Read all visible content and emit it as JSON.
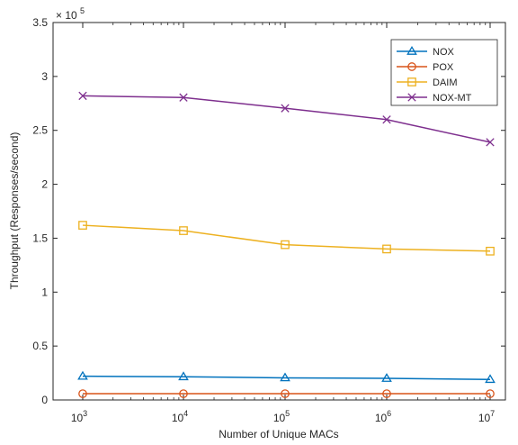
{
  "chart_data": {
    "type": "line",
    "title": "",
    "xlabel": "Number of Unique MACs",
    "ylabel": "Throughput (Responses/second)",
    "x_scale": "log",
    "x": [
      1000,
      10000,
      100000,
      1000000,
      10000000
    ],
    "x_tick_labels": [
      {
        "base": "10",
        "exp": "3"
      },
      {
        "base": "10",
        "exp": "4"
      },
      {
        "base": "10",
        "exp": "5"
      },
      {
        "base": "10",
        "exp": "6"
      },
      {
        "base": "10",
        "exp": "7"
      }
    ],
    "ylim": [
      0,
      350000
    ],
    "y_ticks": [
      0,
      50000,
      100000,
      150000,
      200000,
      250000,
      300000,
      350000
    ],
    "y_tick_labels": [
      "0",
      "0.5",
      "1",
      "1.5",
      "2",
      "2.5",
      "3",
      "3.5"
    ],
    "y_multiplier": {
      "base": "× 10",
      "exp": "5"
    },
    "grid": false,
    "legend_position": "top-right",
    "series": [
      {
        "name": "NOX",
        "color": "#0072BD",
        "marker": "triangle",
        "values": [
          22000,
          21500,
          20500,
          20000,
          19000
        ]
      },
      {
        "name": "POX",
        "color": "#D95319",
        "marker": "circle",
        "values": [
          5800,
          5800,
          5800,
          5800,
          5800
        ]
      },
      {
        "name": "DAIM",
        "color": "#EDB120",
        "marker": "square",
        "values": [
          162000,
          157000,
          144000,
          140000,
          138000
        ]
      },
      {
        "name": "NOX-MT",
        "color": "#7E2F8E",
        "marker": "x",
        "values": [
          282000,
          280500,
          270500,
          260000,
          239000
        ]
      }
    ]
  }
}
